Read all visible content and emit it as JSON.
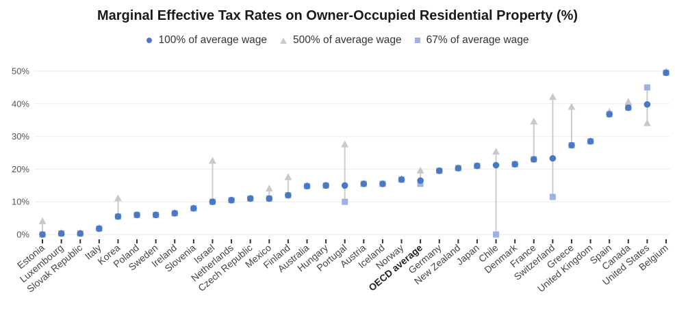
{
  "chart_data": {
    "type": "scatter",
    "title": "Marginal Effective Tax Rates on Owner-Occupied Residential Property (%)",
    "xlabel": "",
    "ylabel": "",
    "ylim": [
      0,
      50
    ],
    "y_ticks": [
      "0%",
      "10%",
      "20%",
      "30%",
      "40%",
      "50%"
    ],
    "y_tick_values": [
      0,
      10,
      20,
      30,
      40,
      50
    ],
    "grid": true,
    "legend_position": "top",
    "bold_category": "OECD average",
    "categories": [
      "Estonia",
      "Luxembourg",
      "Slovak Republic",
      "Italy",
      "Korea",
      "Poland",
      "Sweden",
      "Ireland",
      "Slovenia",
      "Israel",
      "Netherlands",
      "Czech Republic",
      "Mexico",
      "Finland",
      "Australia",
      "Hungary",
      "Portugal",
      "Austria",
      "Iceland",
      "Norway",
      "OECD average",
      "Germany",
      "New Zealand",
      "Japan",
      "Chile",
      "Denmark",
      "France",
      "Switzerland",
      "Greece",
      "United Kingdom",
      "Spain",
      "Canada",
      "United States",
      "Belgium"
    ],
    "series": [
      {
        "name": "100% of average wage",
        "marker": "circle",
        "color": "#4a78c2",
        "values": [
          0,
          0.3,
          0.3,
          1.8,
          5.5,
          6,
          6,
          6.5,
          8,
          10,
          10.5,
          11,
          11,
          12,
          14.8,
          15,
          15,
          15.5,
          15.5,
          16.8,
          16.5,
          19.5,
          20.3,
          21,
          21.2,
          21.5,
          23,
          23.3,
          27.3,
          28.5,
          36.8,
          38.8,
          39.8,
          49.5
        ]
      },
      {
        "name": "500% of average wage",
        "marker": "triangle",
        "color": "#c9c9c9",
        "values": [
          4,
          0.5,
          0.5,
          2,
          11,
          6,
          6,
          6.5,
          8,
          22.5,
          10.5,
          11,
          14,
          17.5,
          15,
          15,
          27.5,
          15.5,
          15.5,
          17,
          19.5,
          19.5,
          20.3,
          21,
          25.3,
          21.5,
          34.5,
          42,
          39,
          28.5,
          37.5,
          40.5,
          34,
          49.8
        ]
      },
      {
        "name": "67% of average wage",
        "marker": "square",
        "color": "#9bb3e3",
        "values": [
          0,
          0.3,
          0.3,
          1.8,
          5.5,
          6,
          6,
          6.5,
          8,
          10,
          10.5,
          11,
          11,
          12,
          14.8,
          15,
          10,
          15.5,
          15.5,
          16.8,
          15.5,
          19.5,
          20.3,
          21,
          0,
          21.5,
          23,
          11.5,
          27.3,
          28.5,
          36.8,
          38.8,
          45,
          49.5
        ]
      }
    ],
    "arrow_color": "#cccccc"
  }
}
